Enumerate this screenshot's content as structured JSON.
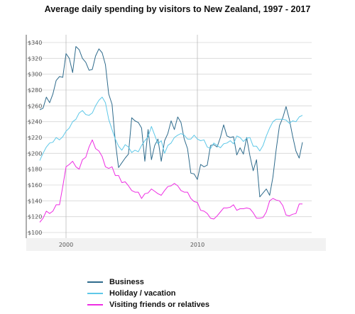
{
  "chart_data": {
    "type": "line",
    "title": "Average daily spending by visitors to New Zealand, 1997 - 2017",
    "xlabel": "",
    "ylabel": "",
    "x_ticks": [
      "2000",
      "2010"
    ],
    "y_ticks": [
      "$340",
      "$320",
      "$300",
      "$280",
      "$260",
      "$240",
      "$220",
      "$200",
      "$180",
      "$160",
      "$140",
      "$120",
      "$100"
    ],
    "ylim": [
      100,
      340
    ],
    "xlim": [
      1997.5,
      2017.75
    ],
    "grid": true,
    "legend_position": "bottom",
    "series": [
      {
        "name": "Business",
        "color": "#2f6b8c",
        "points": [
          [
            1998,
            255
          ],
          [
            1998.25,
            257
          ],
          [
            1998.5,
            271
          ],
          [
            1998.75,
            264
          ],
          [
            1999,
            275
          ],
          [
            1999.25,
            292
          ],
          [
            1999.5,
            297
          ],
          [
            1999.75,
            296
          ],
          [
            2000,
            326
          ],
          [
            2000.25,
            320
          ],
          [
            2000.5,
            302
          ],
          [
            2000.75,
            335
          ],
          [
            2001,
            331
          ],
          [
            2001.25,
            320
          ],
          [
            2001.5,
            315
          ],
          [
            2001.75,
            305
          ],
          [
            2002,
            306
          ],
          [
            2002.25,
            323
          ],
          [
            2002.5,
            332
          ],
          [
            2002.75,
            327
          ],
          [
            2003,
            312
          ],
          [
            2003.25,
            275
          ],
          [
            2003.5,
            262
          ],
          [
            2003.75,
            215
          ],
          [
            2004,
            182
          ],
          [
            2004.25,
            188
          ],
          [
            2004.5,
            194
          ],
          [
            2004.75,
            199
          ],
          [
            2005,
            245
          ],
          [
            2005.25,
            241
          ],
          [
            2005.5,
            239
          ],
          [
            2005.75,
            232
          ],
          [
            2006,
            190
          ],
          [
            2006.25,
            230
          ],
          [
            2006.5,
            192
          ],
          [
            2006.75,
            210
          ],
          [
            2007,
            218
          ],
          [
            2007.25,
            190
          ],
          [
            2007.5,
            216
          ],
          [
            2007.75,
            225
          ],
          [
            2008,
            241
          ],
          [
            2008.25,
            230
          ],
          [
            2008.5,
            246
          ],
          [
            2008.75,
            239
          ],
          [
            2009,
            218
          ],
          [
            2009.25,
            206
          ],
          [
            2009.5,
            175
          ],
          [
            2009.75,
            174
          ],
          [
            2010,
            167
          ],
          [
            2010.25,
            186
          ],
          [
            2010.5,
            183
          ],
          [
            2010.75,
            185
          ],
          [
            2011,
            210
          ],
          [
            2011.25,
            211
          ],
          [
            2011.5,
            208
          ],
          [
            2011.75,
            220
          ],
          [
            2012,
            236
          ],
          [
            2012.25,
            222
          ],
          [
            2012.5,
            220
          ],
          [
            2012.75,
            221
          ],
          [
            2013,
            198
          ],
          [
            2013.25,
            207
          ],
          [
            2013.5,
            199
          ],
          [
            2013.75,
            220
          ],
          [
            2014,
            197
          ],
          [
            2014.25,
            178
          ],
          [
            2014.5,
            192
          ],
          [
            2014.75,
            145
          ],
          [
            2015,
            150
          ],
          [
            2015.25,
            155
          ],
          [
            2015.5,
            147
          ],
          [
            2015.75,
            170
          ],
          [
            2016,
            205
          ],
          [
            2016.25,
            235
          ],
          [
            2016.5,
            245
          ],
          [
            2016.75,
            259
          ],
          [
            2017,
            243
          ],
          [
            2017.25,
            222
          ],
          [
            2017.5,
            203
          ],
          [
            2017.75,
            194
          ],
          [
            2018,
            214
          ]
        ]
      },
      {
        "name": "Holiday / vacation",
        "color": "#5ec8e8",
        "points": [
          [
            1998,
            191
          ],
          [
            1998.25,
            200
          ],
          [
            1998.5,
            208
          ],
          [
            1998.75,
            213
          ],
          [
            1999,
            214
          ],
          [
            1999.25,
            220
          ],
          [
            1999.5,
            217
          ],
          [
            1999.75,
            221
          ],
          [
            2000,
            228
          ],
          [
            2000.25,
            232
          ],
          [
            2000.5,
            240
          ],
          [
            2000.75,
            243
          ],
          [
            2001,
            251
          ],
          [
            2001.25,
            254
          ],
          [
            2001.5,
            249
          ],
          [
            2001.75,
            248
          ],
          [
            2002,
            251
          ],
          [
            2002.25,
            260
          ],
          [
            2002.5,
            267
          ],
          [
            2002.75,
            271
          ],
          [
            2003,
            264
          ],
          [
            2003.25,
            243
          ],
          [
            2003.5,
            230
          ],
          [
            2003.75,
            218
          ],
          [
            2004,
            209
          ],
          [
            2004.25,
            204
          ],
          [
            2004.5,
            211
          ],
          [
            2004.75,
            208
          ],
          [
            2005,
            201
          ],
          [
            2005.25,
            204
          ],
          [
            2005.5,
            202
          ],
          [
            2005.75,
            210
          ],
          [
            2006,
            216
          ],
          [
            2006.25,
            221
          ],
          [
            2006.5,
            234
          ],
          [
            2006.75,
            223
          ],
          [
            2007,
            212
          ],
          [
            2007.25,
            216
          ],
          [
            2007.5,
            200
          ],
          [
            2007.75,
            210
          ],
          [
            2008,
            213
          ],
          [
            2008.25,
            220
          ],
          [
            2008.5,
            223
          ],
          [
            2008.75,
            225
          ],
          [
            2009,
            223
          ],
          [
            2009.25,
            218
          ],
          [
            2009.5,
            218
          ],
          [
            2009.75,
            223
          ],
          [
            2010,
            218
          ],
          [
            2010.25,
            216
          ],
          [
            2010.5,
            217
          ],
          [
            2010.75,
            208
          ],
          [
            2011,
            206
          ],
          [
            2011.25,
            213
          ],
          [
            2011.5,
            210
          ],
          [
            2011.75,
            207
          ],
          [
            2012,
            212
          ],
          [
            2012.25,
            213
          ],
          [
            2012.5,
            216
          ],
          [
            2012.75,
            212
          ],
          [
            2013,
            222
          ],
          [
            2013.25,
            220
          ],
          [
            2013.5,
            215
          ],
          [
            2013.75,
            219
          ],
          [
            2014,
            220
          ],
          [
            2014.25,
            209
          ],
          [
            2014.5,
            209
          ],
          [
            2014.75,
            203
          ],
          [
            2015,
            210
          ],
          [
            2015.25,
            222
          ],
          [
            2015.5,
            232
          ],
          [
            2015.75,
            240
          ],
          [
            2016,
            243
          ],
          [
            2016.25,
            243
          ],
          [
            2016.5,
            243
          ],
          [
            2016.75,
            242
          ],
          [
            2017,
            238
          ],
          [
            2017.25,
            241
          ],
          [
            2017.5,
            240
          ],
          [
            2017.75,
            246
          ],
          [
            2018,
            248
          ]
        ]
      },
      {
        "name": "Visiting friends or relatives",
        "color": "#ee2ee3",
        "points": [
          [
            1998,
            113
          ],
          [
            1998.25,
            118
          ],
          [
            1998.5,
            127
          ],
          [
            1998.75,
            124
          ],
          [
            1999,
            127
          ],
          [
            1999.25,
            135
          ],
          [
            1999.5,
            135
          ],
          [
            1999.75,
            158
          ],
          [
            2000,
            183
          ],
          [
            2000.25,
            186
          ],
          [
            2000.5,
            190
          ],
          [
            2000.75,
            183
          ],
          [
            2001,
            180
          ],
          [
            2001.25,
            192
          ],
          [
            2001.5,
            195
          ],
          [
            2001.75,
            208
          ],
          [
            2002,
            217
          ],
          [
            2002.25,
            206
          ],
          [
            2002.5,
            203
          ],
          [
            2002.75,
            196
          ],
          [
            2003,
            183
          ],
          [
            2003.25,
            181
          ],
          [
            2003.5,
            183
          ],
          [
            2003.75,
            172
          ],
          [
            2004,
            172
          ],
          [
            2004.25,
            163
          ],
          [
            2004.5,
            164
          ],
          [
            2004.75,
            159
          ],
          [
            2005,
            153
          ],
          [
            2005.25,
            151
          ],
          [
            2005.5,
            151
          ],
          [
            2005.75,
            143
          ],
          [
            2006,
            149
          ],
          [
            2006.25,
            150
          ],
          [
            2006.5,
            155
          ],
          [
            2006.75,
            152
          ],
          [
            2007,
            149
          ],
          [
            2007.25,
            147
          ],
          [
            2007.5,
            153
          ],
          [
            2007.75,
            158
          ],
          [
            2008,
            159
          ],
          [
            2008.25,
            162
          ],
          [
            2008.5,
            159
          ],
          [
            2008.75,
            153
          ],
          [
            2009,
            151
          ],
          [
            2009.25,
            151
          ],
          [
            2009.5,
            143
          ],
          [
            2009.75,
            139
          ],
          [
            2010,
            138
          ],
          [
            2010.25,
            128
          ],
          [
            2010.5,
            127
          ],
          [
            2010.75,
            124
          ],
          [
            2011,
            118
          ],
          [
            2011.25,
            117
          ],
          [
            2011.5,
            121
          ],
          [
            2011.75,
            126
          ],
          [
            2012,
            131
          ],
          [
            2012.25,
            131
          ],
          [
            2012.5,
            132
          ],
          [
            2012.75,
            135
          ],
          [
            2013,
            128
          ],
          [
            2013.25,
            130
          ],
          [
            2013.5,
            130
          ],
          [
            2013.75,
            131
          ],
          [
            2014,
            130
          ],
          [
            2014.25,
            125
          ],
          [
            2014.5,
            118
          ],
          [
            2014.75,
            118
          ],
          [
            2015,
            119
          ],
          [
            2015.25,
            126
          ],
          [
            2015.5,
            140
          ],
          [
            2015.75,
            143
          ],
          [
            2016,
            141
          ],
          [
            2016.25,
            140
          ],
          [
            2016.5,
            134
          ],
          [
            2016.75,
            122
          ],
          [
            2017,
            121
          ],
          [
            2017.25,
            123
          ],
          [
            2017.5,
            124
          ],
          [
            2017.75,
            136
          ],
          [
            2018,
            136
          ]
        ]
      }
    ]
  }
}
